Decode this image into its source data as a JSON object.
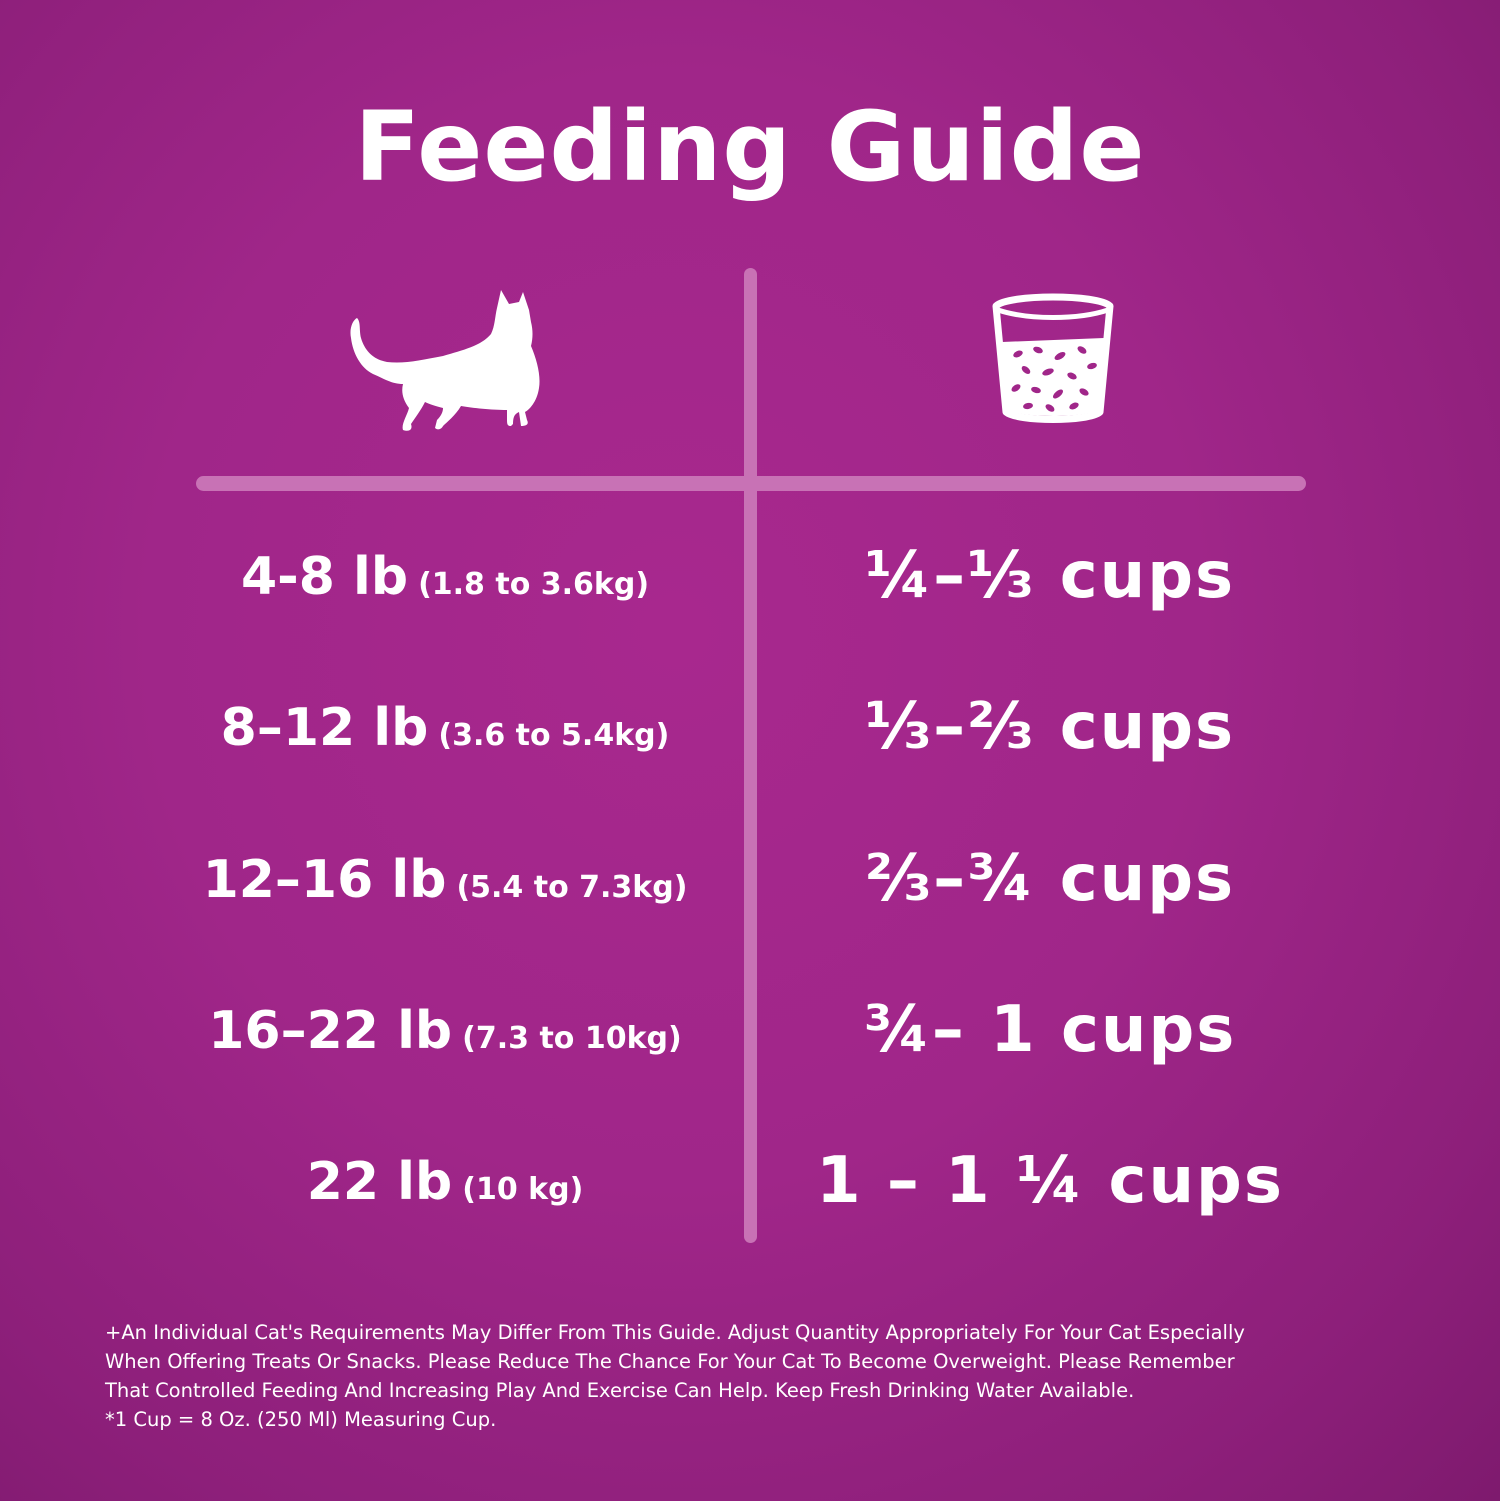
{
  "title": "Feeding Guide",
  "icons": {
    "left_header": "cat-icon",
    "right_header": "measuring-cup-icon"
  },
  "colors": {
    "background": "#a02689",
    "divider": "#c872b5",
    "text": "#ffffff"
  },
  "rows": [
    {
      "weight": "4-8 lb",
      "metric": "(1.8 to 3.6kg)",
      "amount": "¼–⅓ cups"
    },
    {
      "weight": "8–12 lb",
      "metric": "(3.6 to 5.4kg)",
      "amount": "⅓–⅔ cups"
    },
    {
      "weight": "12–16 lb",
      "metric": "(5.4 to 7.3kg)",
      "amount": "⅔–¾ cups"
    },
    {
      "weight": "16–22 lb",
      "metric": "(7.3 to 10kg)",
      "amount": "¾– 1 cups"
    },
    {
      "weight": "22 lb",
      "metric": "(10 kg)",
      "amount": "1 – 1 ¼ cups"
    }
  ],
  "footnote": {
    "line1": "+An Individual Cat's Requirements May Differ From This Guide.  Adjust Quantity Appropriately For Your Cat Especially",
    "line2": "When Offering Treats Or Snacks.  Please Reduce The Chance For Your Cat To Become Overweight.  Please Remember",
    "line3": "That Controlled Feeding And Increasing Play And Exercise Can Help.  Keep Fresh Drinking Water Available.",
    "line4": "*1 Cup = 8 Oz. (250 Ml) Measuring Cup."
  }
}
